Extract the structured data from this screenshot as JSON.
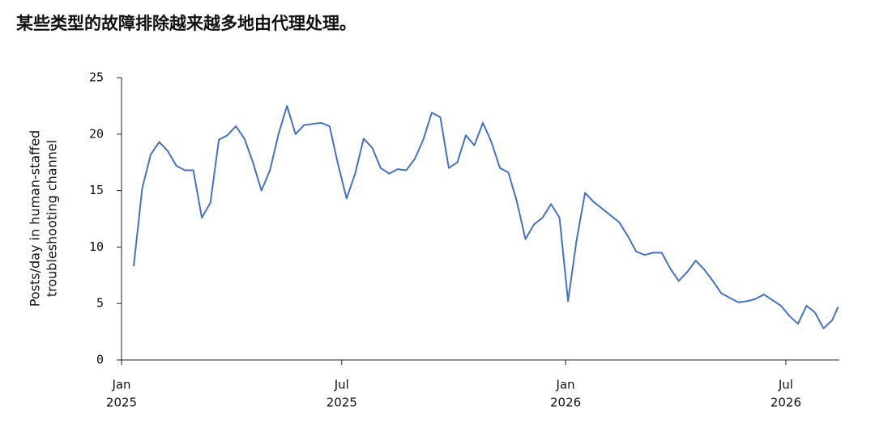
{
  "chart_data": {
    "type": "line",
    "title": "某些类型的故障排除越来越多地由代理处理。",
    "y_label": [
      "Posts/day in human-staffed",
      "troubleshooting channel"
    ],
    "x": [
      "2025-01-11",
      "2025-01-18",
      "2025-01-25",
      "2025-02-01",
      "2025-02-08",
      "2025-02-15",
      "2025-02-22",
      "2025-03-01",
      "2025-03-08",
      "2025-03-15",
      "2025-03-22",
      "2025-03-29",
      "2025-04-05",
      "2025-04-12",
      "2025-04-19",
      "2025-04-26",
      "2025-05-03",
      "2025-05-10",
      "2025-05-17",
      "2025-05-24",
      "2025-05-31",
      "2025-06-07",
      "2025-06-14",
      "2025-06-21",
      "2025-06-28",
      "2025-07-05",
      "2025-07-12",
      "2025-07-19",
      "2025-07-26",
      "2025-08-02",
      "2025-08-09",
      "2025-08-16",
      "2025-08-23",
      "2025-08-30",
      "2025-09-06",
      "2025-09-13",
      "2025-09-20",
      "2025-09-27",
      "2025-10-04",
      "2025-10-11",
      "2025-10-18",
      "2025-10-25",
      "2025-11-01",
      "2025-11-08",
      "2025-11-15",
      "2025-11-22",
      "2025-11-29",
      "2025-12-06",
      "2025-12-13",
      "2025-12-20",
      "2025-12-27",
      "2026-01-03",
      "2026-01-10",
      "2026-01-17",
      "2026-01-24",
      "2026-01-31",
      "2026-02-07",
      "2026-02-14",
      "2026-02-21",
      "2026-02-28",
      "2026-03-07",
      "2026-03-14",
      "2026-03-21",
      "2026-03-28",
      "2026-04-04",
      "2026-04-11",
      "2026-04-18",
      "2026-04-25",
      "2026-05-02",
      "2026-05-09",
      "2026-05-16",
      "2026-05-23",
      "2026-05-30",
      "2026-06-06",
      "2026-06-13",
      "2026-06-20",
      "2026-06-27",
      "2026-07-04",
      "2026-07-11",
      "2026-07-18",
      "2026-07-25",
      "2026-08-01",
      "2026-08-08",
      "2026-08-13"
    ],
    "series": [
      {
        "name": "Posts/day",
        "color": "#4472c4",
        "values": [
          8.3,
          15.2,
          18.2,
          19.3,
          18.5,
          17.2,
          16.8,
          16.8,
          12.6,
          13.9,
          19.5,
          19.9,
          20.7,
          19.6,
          17.5,
          15,
          16.8,
          20,
          22.5,
          20,
          20.8,
          20.9,
          21,
          20.7,
          17.3,
          14.3,
          16.5,
          19.6,
          18.8,
          17,
          16.5,
          16.9,
          16.8,
          17.8,
          19.5,
          21.9,
          21.5,
          17,
          17.5,
          19.9,
          19,
          21,
          19.3,
          17,
          16.6,
          14,
          10.7,
          12,
          12.6,
          13.8,
          12.6,
          5.2,
          10.6,
          14.8,
          14,
          13.4,
          12.8,
          12.2,
          11,
          9.6,
          9.3,
          9.5,
          9.5,
          8.1,
          7,
          7.8,
          8.8,
          8,
          7,
          5.9,
          5.5,
          5.1,
          5.2,
          5.4,
          5.8,
          5.3,
          4.8,
          3.9,
          3.2,
          4.8,
          4.2,
          2.8,
          3.5,
          4.7
        ]
      }
    ],
    "xlim": [
      "2025-01-01",
      "2026-08-14"
    ],
    "xticks": [
      {
        "value": "2025-01-01",
        "label": [
          "Jan",
          "2025"
        ]
      },
      {
        "value": "2025-07-01",
        "label": [
          "Jul",
          "2025"
        ]
      },
      {
        "value": "2026-01-01",
        "label": [
          "Jan",
          "2026"
        ]
      },
      {
        "value": "2026-07-01",
        "label": [
          "Jul",
          "2026"
        ]
      }
    ],
    "ylim": [
      0,
      25
    ],
    "yticks": [
      0,
      5,
      10,
      15,
      20,
      25
    ]
  }
}
